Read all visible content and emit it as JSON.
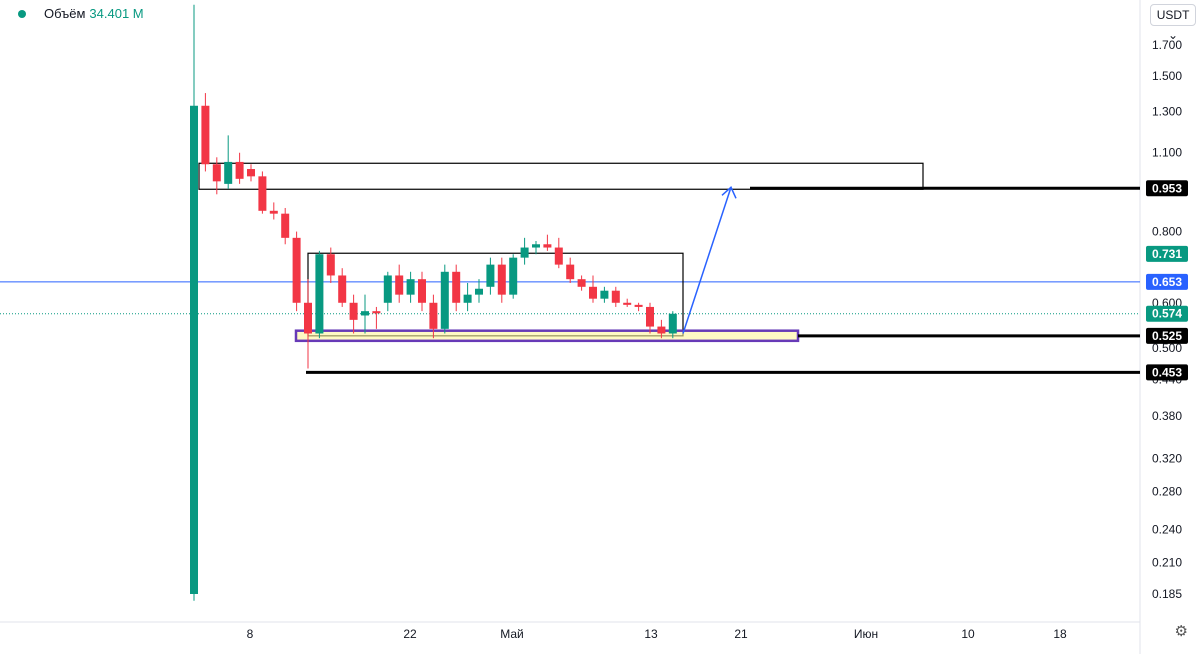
{
  "legend": {
    "label": "Объём",
    "value": "34.401 M"
  },
  "currency": "USDT",
  "settings_icon": "gear-icon",
  "colors": {
    "up": "#089981",
    "down": "#f23645",
    "blue": "#2962ff",
    "purple": "#673ab7",
    "yellow_fill": "#fff59d"
  },
  "chart_data": {
    "type": "candlestick",
    "y_scale": "log",
    "x_ticks": [
      "8",
      "22",
      "Май",
      "13",
      "21",
      "Июн",
      "10",
      "18"
    ],
    "y_ticks": [
      "1.700",
      "1.500",
      "1.300",
      "1.100",
      "0.800",
      "0.600",
      "0.500",
      "0.440",
      "0.380",
      "0.320",
      "0.280",
      "0.240",
      "0.210",
      "0.185"
    ],
    "price_tags": [
      {
        "value": "0.953",
        "style": "black"
      },
      {
        "value": "0.731",
        "style": "green"
      },
      {
        "value": "0.653",
        "style": "blue"
      },
      {
        "value": "0.574",
        "style": "green"
      },
      {
        "value": "0.525",
        "style": "black"
      },
      {
        "value": "0.453",
        "style": "black"
      }
    ],
    "candles": [
      {
        "o": 0.185,
        "h": 2.0,
        "l": 0.18,
        "c": 1.33
      },
      {
        "o": 1.33,
        "h": 1.4,
        "l": 1.02,
        "c": 1.05
      },
      {
        "o": 1.05,
        "h": 1.08,
        "l": 0.93,
        "c": 0.98
      },
      {
        "o": 0.97,
        "h": 1.18,
        "l": 0.95,
        "c": 1.06
      },
      {
        "o": 1.06,
        "h": 1.1,
        "l": 0.97,
        "c": 0.99
      },
      {
        "o": 1.03,
        "h": 1.05,
        "l": 0.98,
        "c": 1.0
      },
      {
        "o": 1.0,
        "h": 1.02,
        "l": 0.86,
        "c": 0.87
      },
      {
        "o": 0.87,
        "h": 0.9,
        "l": 0.84,
        "c": 0.86
      },
      {
        "o": 0.86,
        "h": 0.88,
        "l": 0.76,
        "c": 0.78
      },
      {
        "o": 0.78,
        "h": 0.8,
        "l": 0.58,
        "c": 0.6
      },
      {
        "o": 0.6,
        "h": 0.66,
        "l": 0.46,
        "c": 0.53
      },
      {
        "o": 0.53,
        "h": 0.74,
        "l": 0.52,
        "c": 0.73
      },
      {
        "o": 0.73,
        "h": 0.75,
        "l": 0.65,
        "c": 0.67
      },
      {
        "o": 0.67,
        "h": 0.69,
        "l": 0.59,
        "c": 0.6
      },
      {
        "o": 0.6,
        "h": 0.62,
        "l": 0.53,
        "c": 0.56
      },
      {
        "o": 0.57,
        "h": 0.62,
        "l": 0.53,
        "c": 0.58
      },
      {
        "o": 0.58,
        "h": 0.59,
        "l": 0.54,
        "c": 0.575
      },
      {
        "o": 0.6,
        "h": 0.68,
        "l": 0.58,
        "c": 0.67
      },
      {
        "o": 0.67,
        "h": 0.7,
        "l": 0.6,
        "c": 0.62
      },
      {
        "o": 0.62,
        "h": 0.68,
        "l": 0.6,
        "c": 0.66
      },
      {
        "o": 0.66,
        "h": 0.68,
        "l": 0.58,
        "c": 0.6
      },
      {
        "o": 0.6,
        "h": 0.62,
        "l": 0.52,
        "c": 0.54
      },
      {
        "o": 0.54,
        "h": 0.7,
        "l": 0.53,
        "c": 0.68
      },
      {
        "o": 0.68,
        "h": 0.7,
        "l": 0.58,
        "c": 0.6
      },
      {
        "o": 0.6,
        "h": 0.65,
        "l": 0.58,
        "c": 0.62
      },
      {
        "o": 0.62,
        "h": 0.66,
        "l": 0.6,
        "c": 0.635
      },
      {
        "o": 0.64,
        "h": 0.72,
        "l": 0.62,
        "c": 0.7
      },
      {
        "o": 0.7,
        "h": 0.72,
        "l": 0.6,
        "c": 0.62
      },
      {
        "o": 0.62,
        "h": 0.73,
        "l": 0.61,
        "c": 0.72
      },
      {
        "o": 0.72,
        "h": 0.78,
        "l": 0.7,
        "c": 0.75
      },
      {
        "o": 0.75,
        "h": 0.77,
        "l": 0.73,
        "c": 0.76
      },
      {
        "o": 0.76,
        "h": 0.79,
        "l": 0.74,
        "c": 0.75
      },
      {
        "o": 0.75,
        "h": 0.78,
        "l": 0.69,
        "c": 0.7
      },
      {
        "o": 0.7,
        "h": 0.72,
        "l": 0.65,
        "c": 0.66
      },
      {
        "o": 0.66,
        "h": 0.67,
        "l": 0.63,
        "c": 0.64
      },
      {
        "o": 0.64,
        "h": 0.67,
        "l": 0.6,
        "c": 0.61
      },
      {
        "o": 0.61,
        "h": 0.64,
        "l": 0.6,
        "c": 0.63
      },
      {
        "o": 0.63,
        "h": 0.64,
        "l": 0.59,
        "c": 0.6
      },
      {
        "o": 0.6,
        "h": 0.61,
        "l": 0.59,
        "c": 0.595
      },
      {
        "o": 0.595,
        "h": 0.6,
        "l": 0.58,
        "c": 0.59
      },
      {
        "o": 0.59,
        "h": 0.6,
        "l": 0.53,
        "c": 0.545
      },
      {
        "o": 0.545,
        "h": 0.56,
        "l": 0.52,
        "c": 0.53
      },
      {
        "o": 0.53,
        "h": 0.58,
        "l": 0.52,
        "c": 0.574
      }
    ]
  }
}
